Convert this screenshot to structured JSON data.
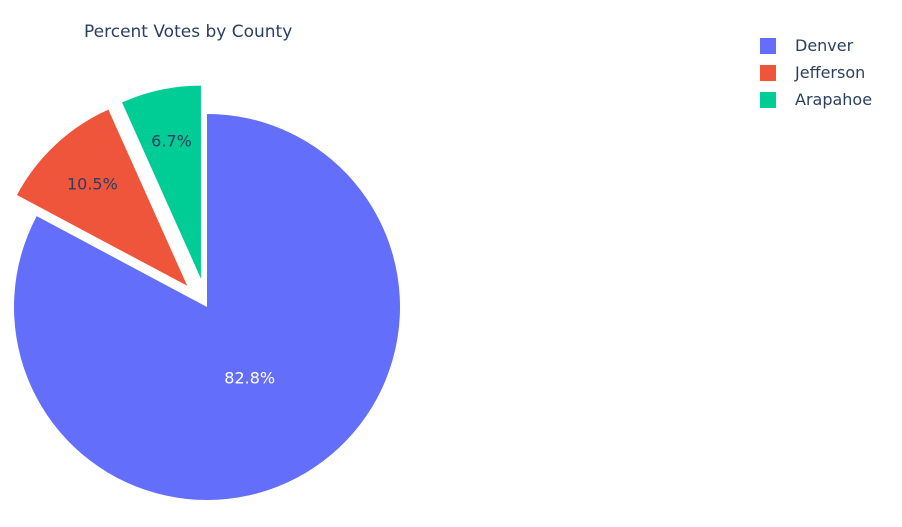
{
  "chart_data": {
    "type": "pie",
    "title": "Percent Votes by County",
    "categories": [
      "Denver",
      "Jefferson",
      "Arapahoe"
    ],
    "values": [
      82.8,
      10.5,
      6.7
    ],
    "labels": [
      "82.8%",
      "10.5%",
      "6.7%"
    ],
    "colors": [
      "#636efa",
      "#ef553b",
      "#00cc96"
    ],
    "label_colors": [
      "#ffffff",
      "#2a3f5f",
      "#2a3f5f"
    ],
    "pulled": [
      false,
      true,
      true
    ],
    "legend_position": "top-right"
  }
}
